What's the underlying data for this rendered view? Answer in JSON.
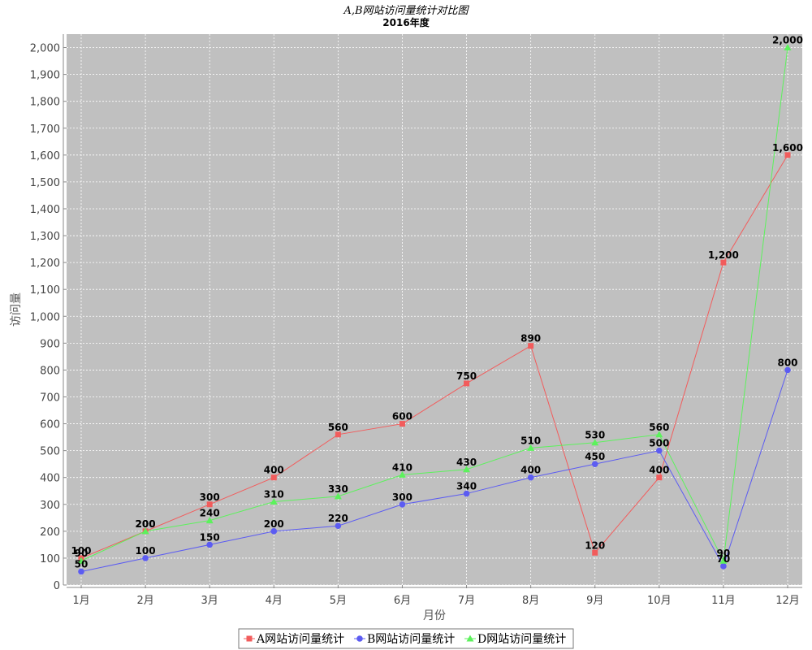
{
  "chart_data": {
    "type": "line",
    "title": "A,B网站访问量统计对比图",
    "subtitle": "2016年度",
    "xlabel": "月份",
    "ylabel": "访问量",
    "ylim": [
      0,
      2050
    ],
    "y_ticks": [
      0,
      100,
      200,
      300,
      400,
      500,
      600,
      700,
      800,
      900,
      1000,
      1100,
      1200,
      1300,
      1400,
      1500,
      1600,
      1700,
      1800,
      1900,
      2000
    ],
    "y_tick_labels": [
      "0",
      "100",
      "200",
      "300",
      "400",
      "500",
      "600",
      "700",
      "800",
      "900",
      "1,000",
      "1,100",
      "1,200",
      "1,300",
      "1,400",
      "1,500",
      "1,600",
      "1,700",
      "1,800",
      "1,900",
      "2,000"
    ],
    "categories": [
      "1月",
      "2月",
      "3月",
      "4月",
      "5月",
      "6月",
      "7月",
      "8月",
      "9月",
      "10月",
      "11月",
      "12月"
    ],
    "plot_background": "#c0c0c0",
    "grid": true,
    "legend_position": "bottom",
    "series": [
      {
        "name": "A网站访问量统计",
        "color": "#f25c5c",
        "marker": "square",
        "values": [
          100,
          200,
          300,
          400,
          560,
          600,
          750,
          890,
          120,
          400,
          1200,
          1600
        ],
        "labels": [
          "100",
          "200",
          "300",
          "400",
          "560",
          "600",
          "750",
          "890",
          "120",
          "400",
          "1,200",
          "1,600"
        ]
      },
      {
        "name": "B网站访问量统计",
        "color": "#5c5cf2",
        "marker": "circle",
        "values": [
          50,
          100,
          150,
          200,
          220,
          300,
          340,
          400,
          450,
          500,
          70,
          800
        ],
        "labels": [
          "50",
          "100",
          "150",
          "200",
          "220",
          "300",
          "340",
          "400",
          "450",
          "500",
          "70",
          "800"
        ]
      },
      {
        "name": "D网站访问量统计",
        "color": "#5cf25c",
        "marker": "triangle",
        "values": [
          90,
          200,
          240,
          310,
          330,
          410,
          430,
          510,
          530,
          560,
          90,
          2000
        ],
        "labels": [
          "90",
          "200",
          "240",
          "310",
          "330",
          "410",
          "430",
          "510",
          "530",
          "560",
          "90",
          "2,000"
        ]
      }
    ]
  }
}
